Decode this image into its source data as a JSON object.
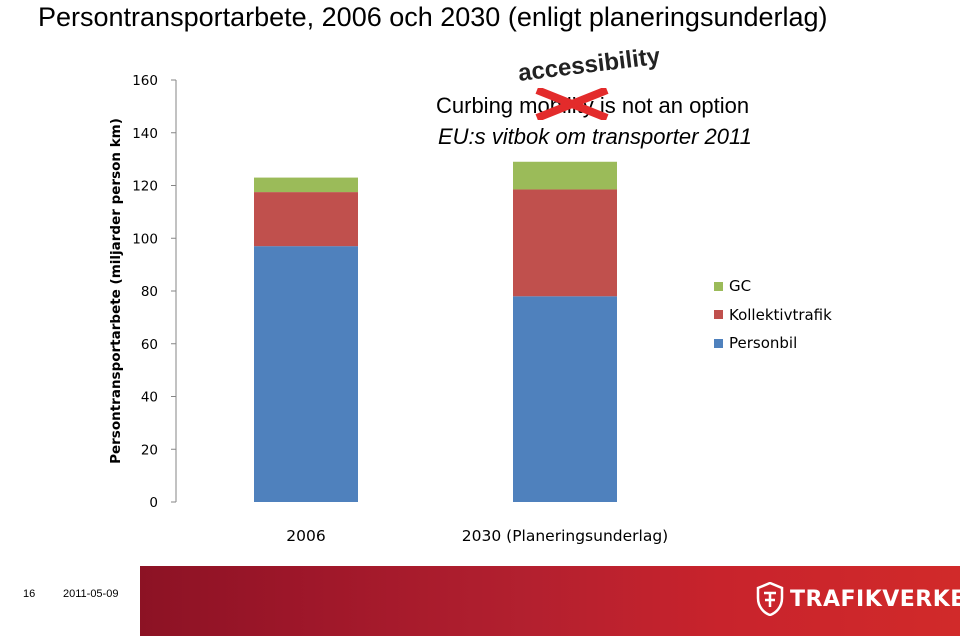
{
  "slide": {
    "title": "Persontransportarbete, 2006 och 2030 (enligt planeringsunderlag)",
    "number": "16",
    "date": "2011-05-09",
    "brand": "TRAFIKVERKET",
    "brand_icon": "trafikverket-logo-icon"
  },
  "annotation": {
    "line1": "Curbing mobility is not an option",
    "line2": "EU:s vitbok om transporter 2011",
    "overwrite": "accessibility",
    "strike_color": "#e32b2b"
  },
  "chart_data": {
    "type": "bar",
    "stacked": true,
    "title": "",
    "ylabel": "Persontransportarbete (miljarder person km)",
    "xlabel": "",
    "ylim": [
      0,
      160
    ],
    "yticks": [
      0,
      20,
      40,
      60,
      80,
      100,
      120,
      140,
      160
    ],
    "categories": [
      "2006",
      "2030 (Planeringsunderlag)"
    ],
    "series": [
      {
        "name": "Personbil",
        "values": [
          97,
          78
        ],
        "color": "#4f81bd"
      },
      {
        "name": "Kollektivtrafik",
        "values": [
          20.5,
          40.5
        ],
        "color": "#c0504d"
      },
      {
        "name": "GC",
        "values": [
          5.5,
          10.5
        ],
        "color": "#9bbb59"
      }
    ],
    "legend_position": "right",
    "legend_order": [
      "GC",
      "Kollektivtrafik",
      "Personbil"
    ],
    "grid": false
  }
}
